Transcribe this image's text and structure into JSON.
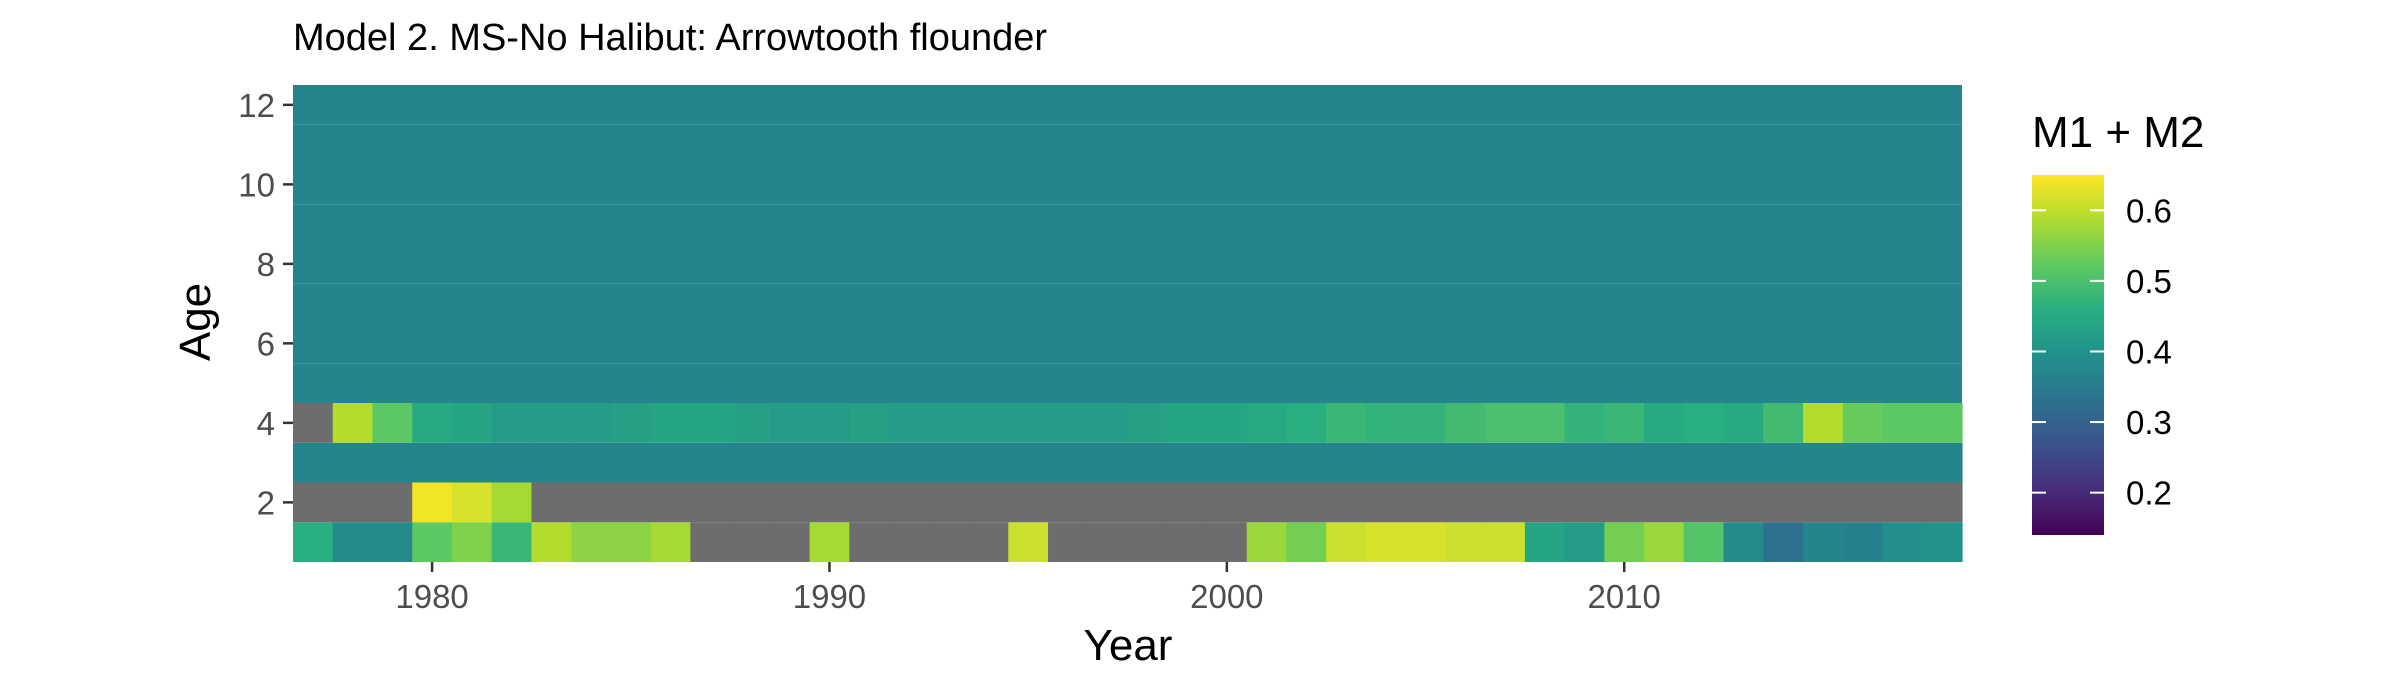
{
  "chart_data": {
    "type": "heatmap",
    "title": "Model 2. MS-No Halibut: Arrowtooth flounder",
    "xlabel": "Year",
    "ylabel": "Age",
    "xlim": [
      1976.5,
      2018.5
    ],
    "ylim": [
      0.5,
      12.5
    ],
    "x_ticks": [
      1980,
      1990,
      2000,
      2010
    ],
    "y_ticks": [
      2,
      4,
      6,
      8,
      10,
      12
    ],
    "legend": {
      "title": "M1 + M2",
      "placement": "right",
      "min": 0.14,
      "max": 0.65,
      "ticks": [
        0.2,
        0.3,
        0.4,
        0.5,
        0.6
      ]
    },
    "colorscale": "viridis",
    "na_color": "#6d6d6d",
    "grid": false,
    "years": [
      1977,
      1978,
      1979,
      1980,
      1981,
      1982,
      1983,
      1984,
      1985,
      1986,
      1987,
      1988,
      1989,
      1990,
      1991,
      1992,
      1993,
      1994,
      1995,
      1996,
      1997,
      1998,
      1999,
      2000,
      2001,
      2002,
      2003,
      2004,
      2005,
      2006,
      2007,
      2008,
      2009,
      2010,
      2011,
      2012,
      2013,
      2014,
      2015,
      2016,
      2017,
      2018
    ],
    "ages_plain": [
      5,
      6,
      7,
      8,
      9,
      10,
      11,
      12
    ],
    "plain_value": 0.37,
    "rows": [
      {
        "age": 1,
        "values": [
          0.46,
          0.38,
          0.38,
          0.52,
          0.55,
          0.48,
          0.59,
          0.56,
          0.56,
          0.58,
          null,
          null,
          null,
          0.58,
          null,
          null,
          null,
          null,
          0.61,
          null,
          null,
          null,
          null,
          null,
          0.57,
          0.54,
          0.61,
          0.62,
          0.62,
          0.61,
          0.61,
          0.44,
          0.42,
          0.54,
          0.57,
          0.51,
          0.38,
          0.33,
          0.37,
          0.36,
          0.39,
          0.4
        ]
      },
      {
        "age": 2,
        "values": [
          null,
          null,
          null,
          0.64,
          0.62,
          0.58,
          null,
          null,
          null,
          null,
          null,
          null,
          null,
          null,
          null,
          null,
          null,
          null,
          null,
          null,
          null,
          null,
          null,
          null,
          null,
          null,
          null,
          null,
          null,
          null,
          null,
          null,
          null,
          null,
          null,
          null,
          null,
          null,
          null,
          null,
          null,
          null
        ]
      },
      {
        "age": 3,
        "values": [
          0.37,
          0.37,
          0.37,
          0.37,
          0.37,
          0.37,
          0.37,
          0.37,
          0.37,
          0.37,
          0.37,
          0.37,
          0.37,
          0.37,
          0.37,
          0.37,
          0.37,
          0.37,
          0.37,
          0.37,
          0.37,
          0.37,
          0.37,
          0.37,
          0.37,
          0.37,
          0.37,
          0.37,
          0.37,
          0.37,
          0.37,
          0.37,
          0.37,
          0.37,
          0.37,
          0.37,
          0.37,
          0.37,
          0.37,
          0.37,
          0.37,
          0.37
        ]
      },
      {
        "age": 4,
        "values": [
          null,
          0.59,
          0.52,
          0.45,
          0.44,
          0.42,
          0.42,
          0.42,
          0.43,
          0.44,
          0.44,
          0.43,
          0.42,
          0.42,
          0.43,
          0.42,
          0.42,
          0.42,
          0.42,
          0.42,
          0.42,
          0.43,
          0.44,
          0.44,
          0.45,
          0.46,
          0.48,
          0.47,
          0.47,
          0.49,
          0.5,
          0.5,
          0.47,
          0.48,
          0.45,
          0.46,
          0.45,
          0.49,
          0.59,
          0.53,
          0.52,
          0.52
        ]
      }
    ]
  }
}
